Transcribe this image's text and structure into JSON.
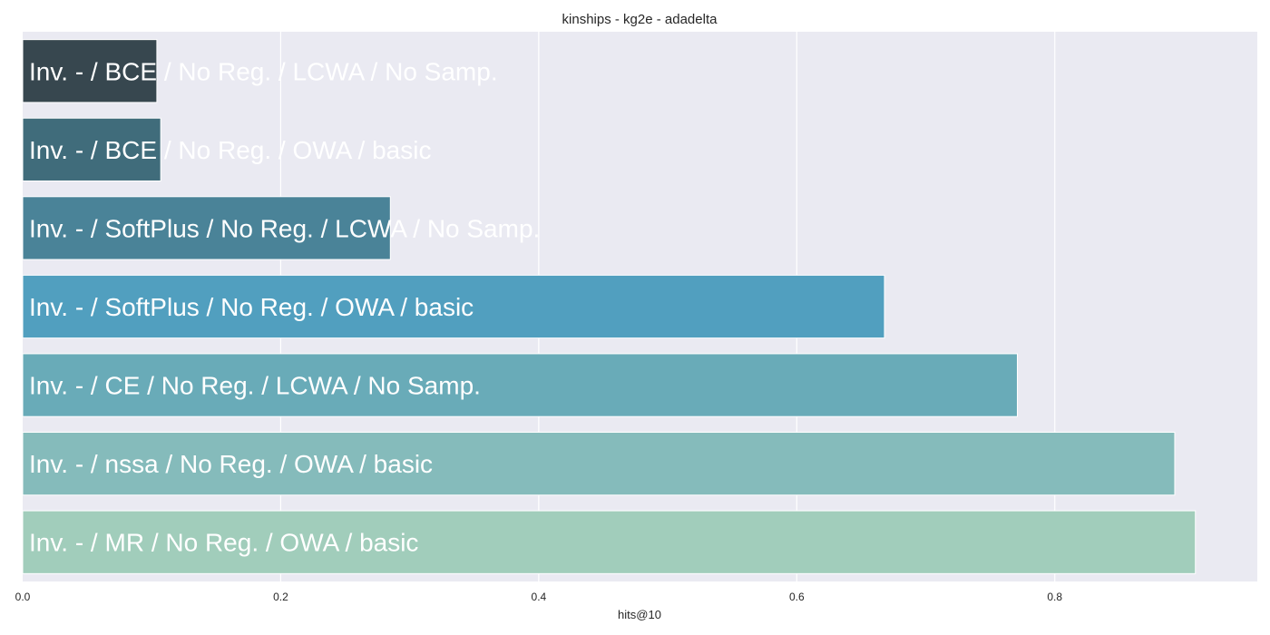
{
  "chart_data": {
    "type": "bar",
    "orientation": "horizontal",
    "title": "kinships - kg2e - adadelta",
    "xlabel": "hits@10",
    "ylabel": "",
    "xlim": [
      0,
      0.957
    ],
    "xticks": [
      0.0,
      0.2,
      0.4,
      0.6,
      0.8
    ],
    "xtick_labels": [
      "0.0",
      "0.2",
      "0.4",
      "0.6",
      "0.8"
    ],
    "grid": true,
    "legend": "none",
    "categories": [
      "Inv. - / BCE / No Reg. / LCWA / No Samp.",
      "Inv. - / BCE / No Reg. / OWA / basic",
      "Inv. - / SoftPlus / No Reg. / LCWA / No Samp.",
      "Inv. - / SoftPlus / No Reg. / OWA / basic",
      "Inv. - / CE / No Reg. / LCWA / No Samp.",
      "Inv. - / nssa / No Reg. / OWA / basic",
      "Inv. - / MR / No Reg. / OWA / basic"
    ],
    "values": [
      0.104,
      0.107,
      0.285,
      0.668,
      0.771,
      0.893,
      0.909
    ],
    "colors": [
      "#37474f",
      "#406c7b",
      "#4a8398",
      "#519fbf",
      "#69abb8",
      "#85bbbb",
      "#a1cdbb"
    ]
  }
}
